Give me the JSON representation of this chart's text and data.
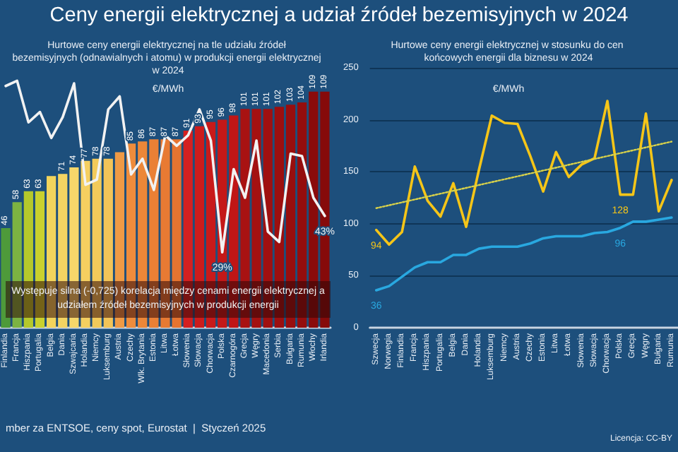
{
  "chart_data": [
    {
      "type": "bar",
      "title": "Ceny energii elektrycznej a udział źródeł bezemisyjnych w 2024",
      "subtitle": "Hurtowe ceny energii elektrycznej na tle udziału źródeł bezemisyjnych (odnawialnych i atomu) w produkcji energii elektrycznej w 2024",
      "ylabel": "€/MWh",
      "categories": [
        "Finlandia",
        "Francja",
        "Hiszpania",
        "Portugalia",
        "Belgia",
        "Dania",
        "Szwajcaria",
        "Holandia",
        "Niemcy",
        "Luksemburg",
        "Austria",
        "Czechy",
        "Wlk. Brytania",
        "Estonia",
        "Litwa",
        "Łotwa",
        "Słowenia",
        "Słowacja",
        "Chorwacja",
        "Polska",
        "Czarnogóra",
        "Grecja",
        "Węgry",
        "Macedonia",
        "Serbia",
        "Bułgaria",
        "Rumunia",
        "Włochy",
        "Irlandia"
      ],
      "series": [
        {
          "values": [
            46,
            58,
            63,
            63,
            70,
            71,
            74,
            77,
            78,
            78,
            81,
            85,
            86,
            87,
            87,
            87,
            91,
            93,
            95,
            96,
            98,
            101,
            101,
            101,
            102,
            103,
            104,
            109,
            109
          ],
          "value_labels": [
            "46",
            "58",
            "63",
            "63",
            null,
            "71",
            "74",
            "77",
            "78",
            "78",
            null,
            "85",
            "86",
            "87",
            "87",
            "87",
            "91",
            "93",
            "95",
            "96",
            "98",
            "101",
            "101",
            "101",
            "102",
            "103",
            "104",
            "109",
            "109"
          ],
          "colors": [
            "#4e9a3a",
            "#7cb342",
            "#b5c92b",
            "#c9d12e",
            "#f2d45c",
            "#f4d462",
            "#f6d76a",
            "#f5cf60",
            "#f3ca5a",
            "#f3c458",
            "#ef9a45",
            "#ee8c3c",
            "#ec8738",
            "#ea8035",
            "#e87a33",
            "#e67430",
            "#d42020",
            "#cc1c1c",
            "#c81a1a",
            "#c41818",
            "#c01616",
            "#a81212",
            "#a41111",
            "#a01010",
            "#9c0f0f",
            "#980e0e",
            "#940d0d",
            "#8a0b0b",
            "#860a0a"
          ]
        },
        {
          "type": "line",
          "axis": "y2",
          "color": "#f2f2f2",
          "values": [
            93,
            95,
            79,
            83,
            73,
            81,
            94,
            55,
            57,
            84,
            89,
            59,
            65,
            53,
            74,
            70,
            74,
            84,
            72,
            29,
            61,
            50,
            72,
            37,
            33,
            67,
            66,
            50,
            43
          ],
          "value_labels": [
            null,
            null,
            null,
            null,
            null,
            null,
            null,
            null,
            null,
            null,
            null,
            null,
            null,
            null,
            null,
            null,
            null,
            null,
            null,
            "29%",
            null,
            null,
            null,
            null,
            null,
            null,
            null,
            null,
            "43%"
          ]
        }
      ],
      "tick_labels": "x",
      "marker": "none",
      "annotations": [
        "Występuje silna (-0,725) korelacja między cenami energii elektrycznej a udziałem źródeł bezemisyjnych w produkcji energii",
        "mber za ENTSOE, ceny spot, Eurostat  |  Styczeń 2025"
      ]
    },
    {
      "type": "line",
      "subtitle": "Hurtowe ceny energii elektrycznej w stosunku do cen końcowych energii dla biznesu w 2024",
      "ylabel": "€/MWh",
      "categories": [
        "Szwecja",
        "Norwegia",
        "Finlandia",
        "Francja",
        "Hiszpania",
        "Portugalia",
        "Belgia",
        "Dania",
        "Holandia",
        "Luksemburg",
        "Niemcy",
        "Austria",
        "Czechy",
        "Estonia",
        "Litwa",
        "Łotwa",
        "Słowenia",
        "Słowacja",
        "Chorwacja",
        "Polska",
        "Grecja",
        "Węgry",
        "Bułgaria",
        "Rumunia"
      ],
      "series": [
        {
          "color": "#f5c518",
          "values": [
            94,
            80,
            92,
            155,
            122,
            107,
            139,
            97,
            152,
            204,
            197,
            196,
            165,
            131,
            169,
            145,
            157,
            163,
            218,
            128,
            128,
            206,
            112,
            142
          ],
          "value_labels": [
            "94",
            null,
            null,
            null,
            null,
            null,
            null,
            null,
            null,
            null,
            null,
            null,
            null,
            null,
            null,
            null,
            null,
            null,
            null,
            "128",
            null,
            null,
            null,
            null
          ]
        },
        {
          "color": "#29a8e0",
          "values": [
            36,
            40,
            49,
            58,
            63,
            63,
            70,
            70,
            76,
            78,
            78,
            78,
            81,
            86,
            88,
            88,
            88,
            91,
            92,
            96,
            102,
            102,
            104,
            106
          ],
          "value_labels": [
            "36",
            null,
            null,
            null,
            null,
            null,
            null,
            null,
            null,
            null,
            null,
            null,
            null,
            null,
            null,
            null,
            null,
            null,
            null,
            "96",
            null,
            null,
            null,
            null
          ]
        },
        {
          "color": "#d9d24a",
          "line_style": "dotted",
          "x": [
            "Szwecja",
            "Rumunia"
          ],
          "values": [
            115,
            179
          ]
        }
      ],
      "ylim": [
        0,
        250
      ],
      "yticks": [
        0,
        50,
        100,
        150,
        200,
        250
      ],
      "grid": "y",
      "marker": "none",
      "annotations": [
        "Licencja: CC-BY"
      ]
    }
  ]
}
